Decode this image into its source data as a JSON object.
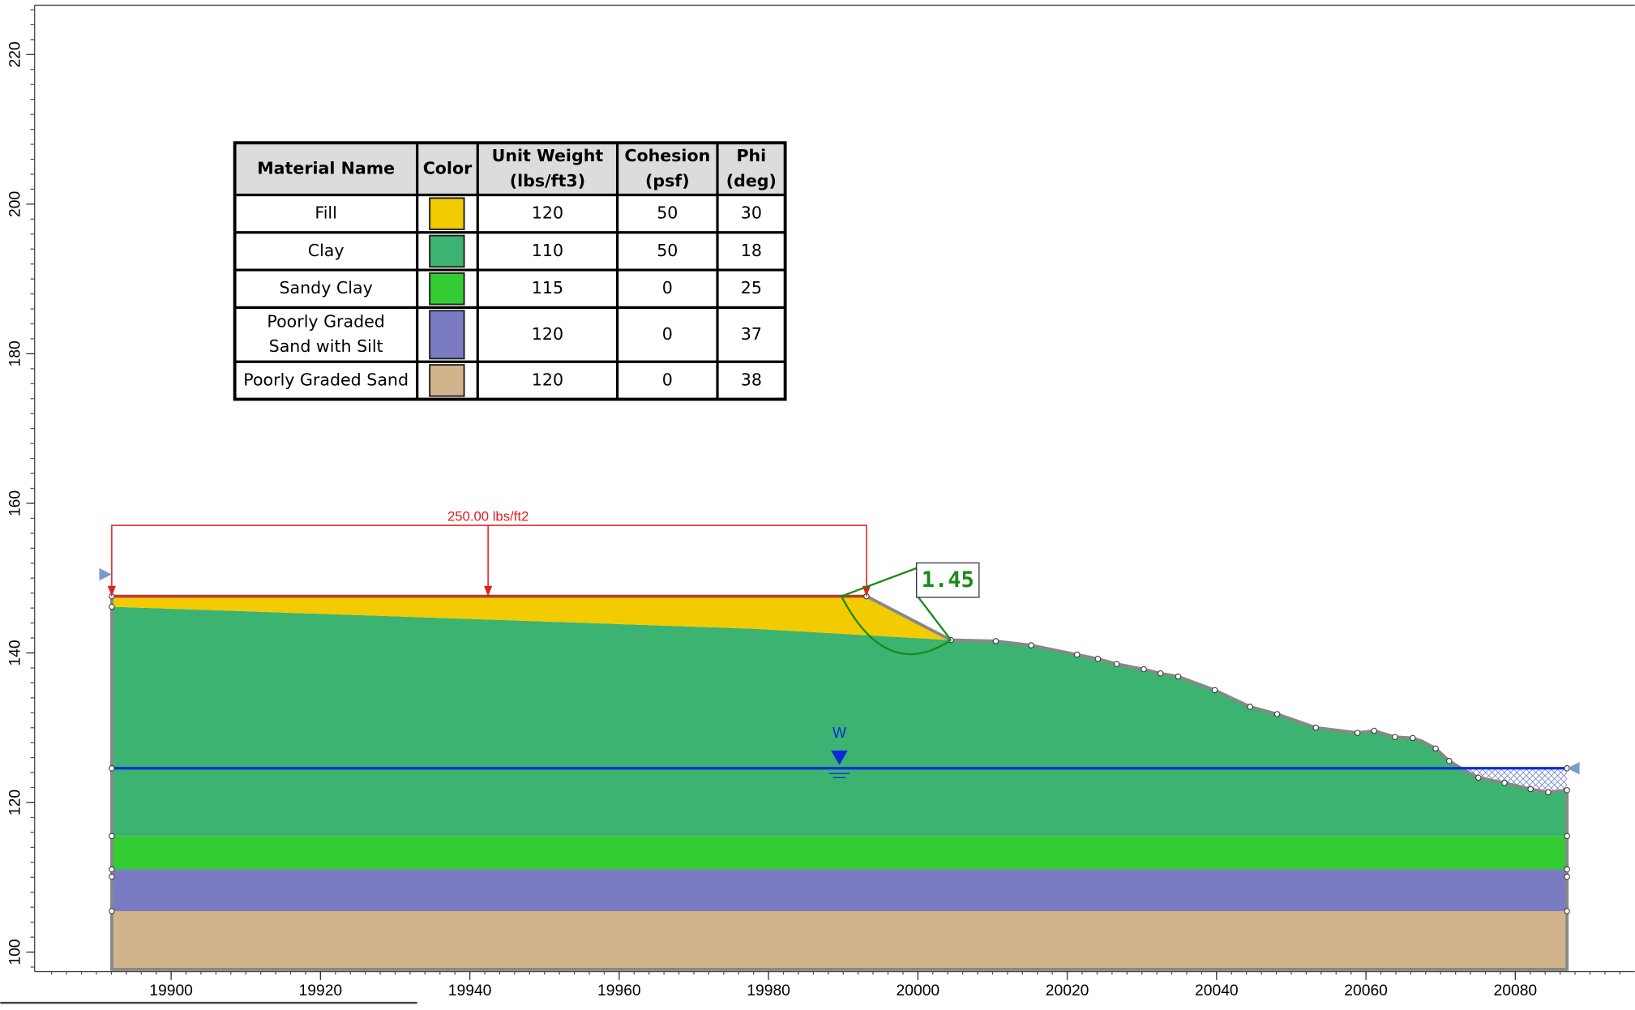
{
  "axes": {
    "xlim": [
      19882,
      20096
    ],
    "ylim": [
      97.4,
      226.6
    ],
    "xticks": [
      19900,
      19920,
      19940,
      19960,
      19980,
      20000,
      20020,
      20040,
      20060,
      20080
    ],
    "yticks": [
      100,
      120,
      140,
      160,
      180,
      200,
      220
    ]
  },
  "table": {
    "headers": [
      [
        "Material Name"
      ],
      [
        "Color"
      ],
      [
        "Unit Weight",
        "(lbs/ft3)"
      ],
      [
        "Cohesion",
        "(psf)"
      ],
      [
        "Phi",
        "(deg)"
      ]
    ],
    "rows": [
      {
        "name": [
          "Fill"
        ],
        "color": "#f2cb00",
        "unit_weight": 120,
        "cohesion": 50,
        "phi": 30
      },
      {
        "name": [
          "Clay"
        ],
        "color": "#3cb371",
        "unit_weight": 110,
        "cohesion": 50,
        "phi": 18
      },
      {
        "name": [
          "Sandy Clay"
        ],
        "color": "#33cc33",
        "unit_weight": 115,
        "cohesion": 0,
        "phi": 25
      },
      {
        "name": [
          "Poorly Graded",
          "Sand with Silt"
        ],
        "color": "#7b7bc4",
        "unit_weight": 120,
        "cohesion": 0,
        "phi": 37
      },
      {
        "name": [
          "Poorly Graded Sand"
        ],
        "color": "#d2b48c",
        "unit_weight": 120,
        "cohesion": 0,
        "phi": 38
      }
    ]
  },
  "load_label": "250.00 lbs/ft2",
  "factor_of_safety": "1.45",
  "water_label": "W"
}
